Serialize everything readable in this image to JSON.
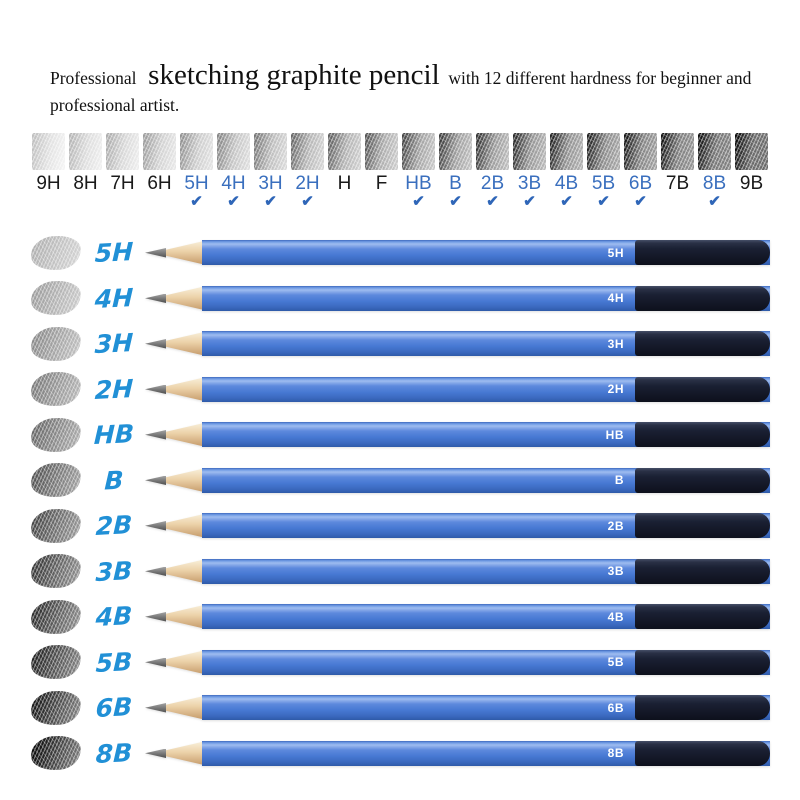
{
  "title": {
    "prefix": "Professional",
    "emphasis": "sketching graphite pencil",
    "suffix": "with 12 different hardness for beginner and professional artist."
  },
  "colors": {
    "scale_label_included": "#3a6fbe",
    "scale_label_default": "#1a1a1a",
    "check": "#2f66b8",
    "handwritten_label": "#2190d6",
    "pencil_print": "#ffffff",
    "swatch_ink": "15,15,15"
  },
  "check_glyph": "✔",
  "hardness_scale": {
    "items": [
      {
        "grade": "9H",
        "included": false,
        "dark_left": 0.26,
        "dark_right": 0.05
      },
      {
        "grade": "8H",
        "included": false,
        "dark_left": 0.3,
        "dark_right": 0.07
      },
      {
        "grade": "7H",
        "included": false,
        "dark_left": 0.34,
        "dark_right": 0.08
      },
      {
        "grade": "6H",
        "included": false,
        "dark_left": 0.4,
        "dark_right": 0.1
      },
      {
        "grade": "5H",
        "included": true,
        "dark_left": 0.45,
        "dark_right": 0.12
      },
      {
        "grade": "4H",
        "included": true,
        "dark_left": 0.5,
        "dark_right": 0.14
      },
      {
        "grade": "3H",
        "included": true,
        "dark_left": 0.56,
        "dark_right": 0.16
      },
      {
        "grade": "2H",
        "included": true,
        "dark_left": 0.62,
        "dark_right": 0.18
      },
      {
        "grade": "H",
        "included": false,
        "dark_left": 0.66,
        "dark_right": 0.2
      },
      {
        "grade": "F",
        "included": false,
        "dark_left": 0.7,
        "dark_right": 0.22
      },
      {
        "grade": "HB",
        "included": true,
        "dark_left": 0.76,
        "dark_right": 0.24
      },
      {
        "grade": "B",
        "included": true,
        "dark_left": 0.8,
        "dark_right": 0.26
      },
      {
        "grade": "2B",
        "included": true,
        "dark_left": 0.84,
        "dark_right": 0.28
      },
      {
        "grade": "3B",
        "included": true,
        "dark_left": 0.87,
        "dark_right": 0.3
      },
      {
        "grade": "4B",
        "included": true,
        "dark_left": 0.9,
        "dark_right": 0.33
      },
      {
        "grade": "5B",
        "included": true,
        "dark_left": 0.92,
        "dark_right": 0.36
      },
      {
        "grade": "6B",
        "included": true,
        "dark_left": 0.95,
        "dark_right": 0.4
      },
      {
        "grade": "7B",
        "included": false,
        "dark_left": 0.97,
        "dark_right": 0.45
      },
      {
        "grade": "8B",
        "included": true,
        "dark_left": 0.98,
        "dark_right": 0.52
      },
      {
        "grade": "9B",
        "included": false,
        "dark_left": 1.0,
        "dark_right": 0.62
      }
    ]
  },
  "pencils": {
    "rows": [
      {
        "grade": "5H",
        "swatch_dark": 0.32
      },
      {
        "grade": "4H",
        "swatch_dark": 0.4
      },
      {
        "grade": "3H",
        "swatch_dark": 0.48
      },
      {
        "grade": "2H",
        "swatch_dark": 0.54
      },
      {
        "grade": "HB",
        "swatch_dark": 0.62
      },
      {
        "grade": "B",
        "swatch_dark": 0.7
      },
      {
        "grade": "2B",
        "swatch_dark": 0.76
      },
      {
        "grade": "3B",
        "swatch_dark": 0.82
      },
      {
        "grade": "4B",
        "swatch_dark": 0.86
      },
      {
        "grade": "5B",
        "swatch_dark": 0.9
      },
      {
        "grade": "6B",
        "swatch_dark": 0.95
      },
      {
        "grade": "8B",
        "swatch_dark": 1.0
      }
    ]
  }
}
